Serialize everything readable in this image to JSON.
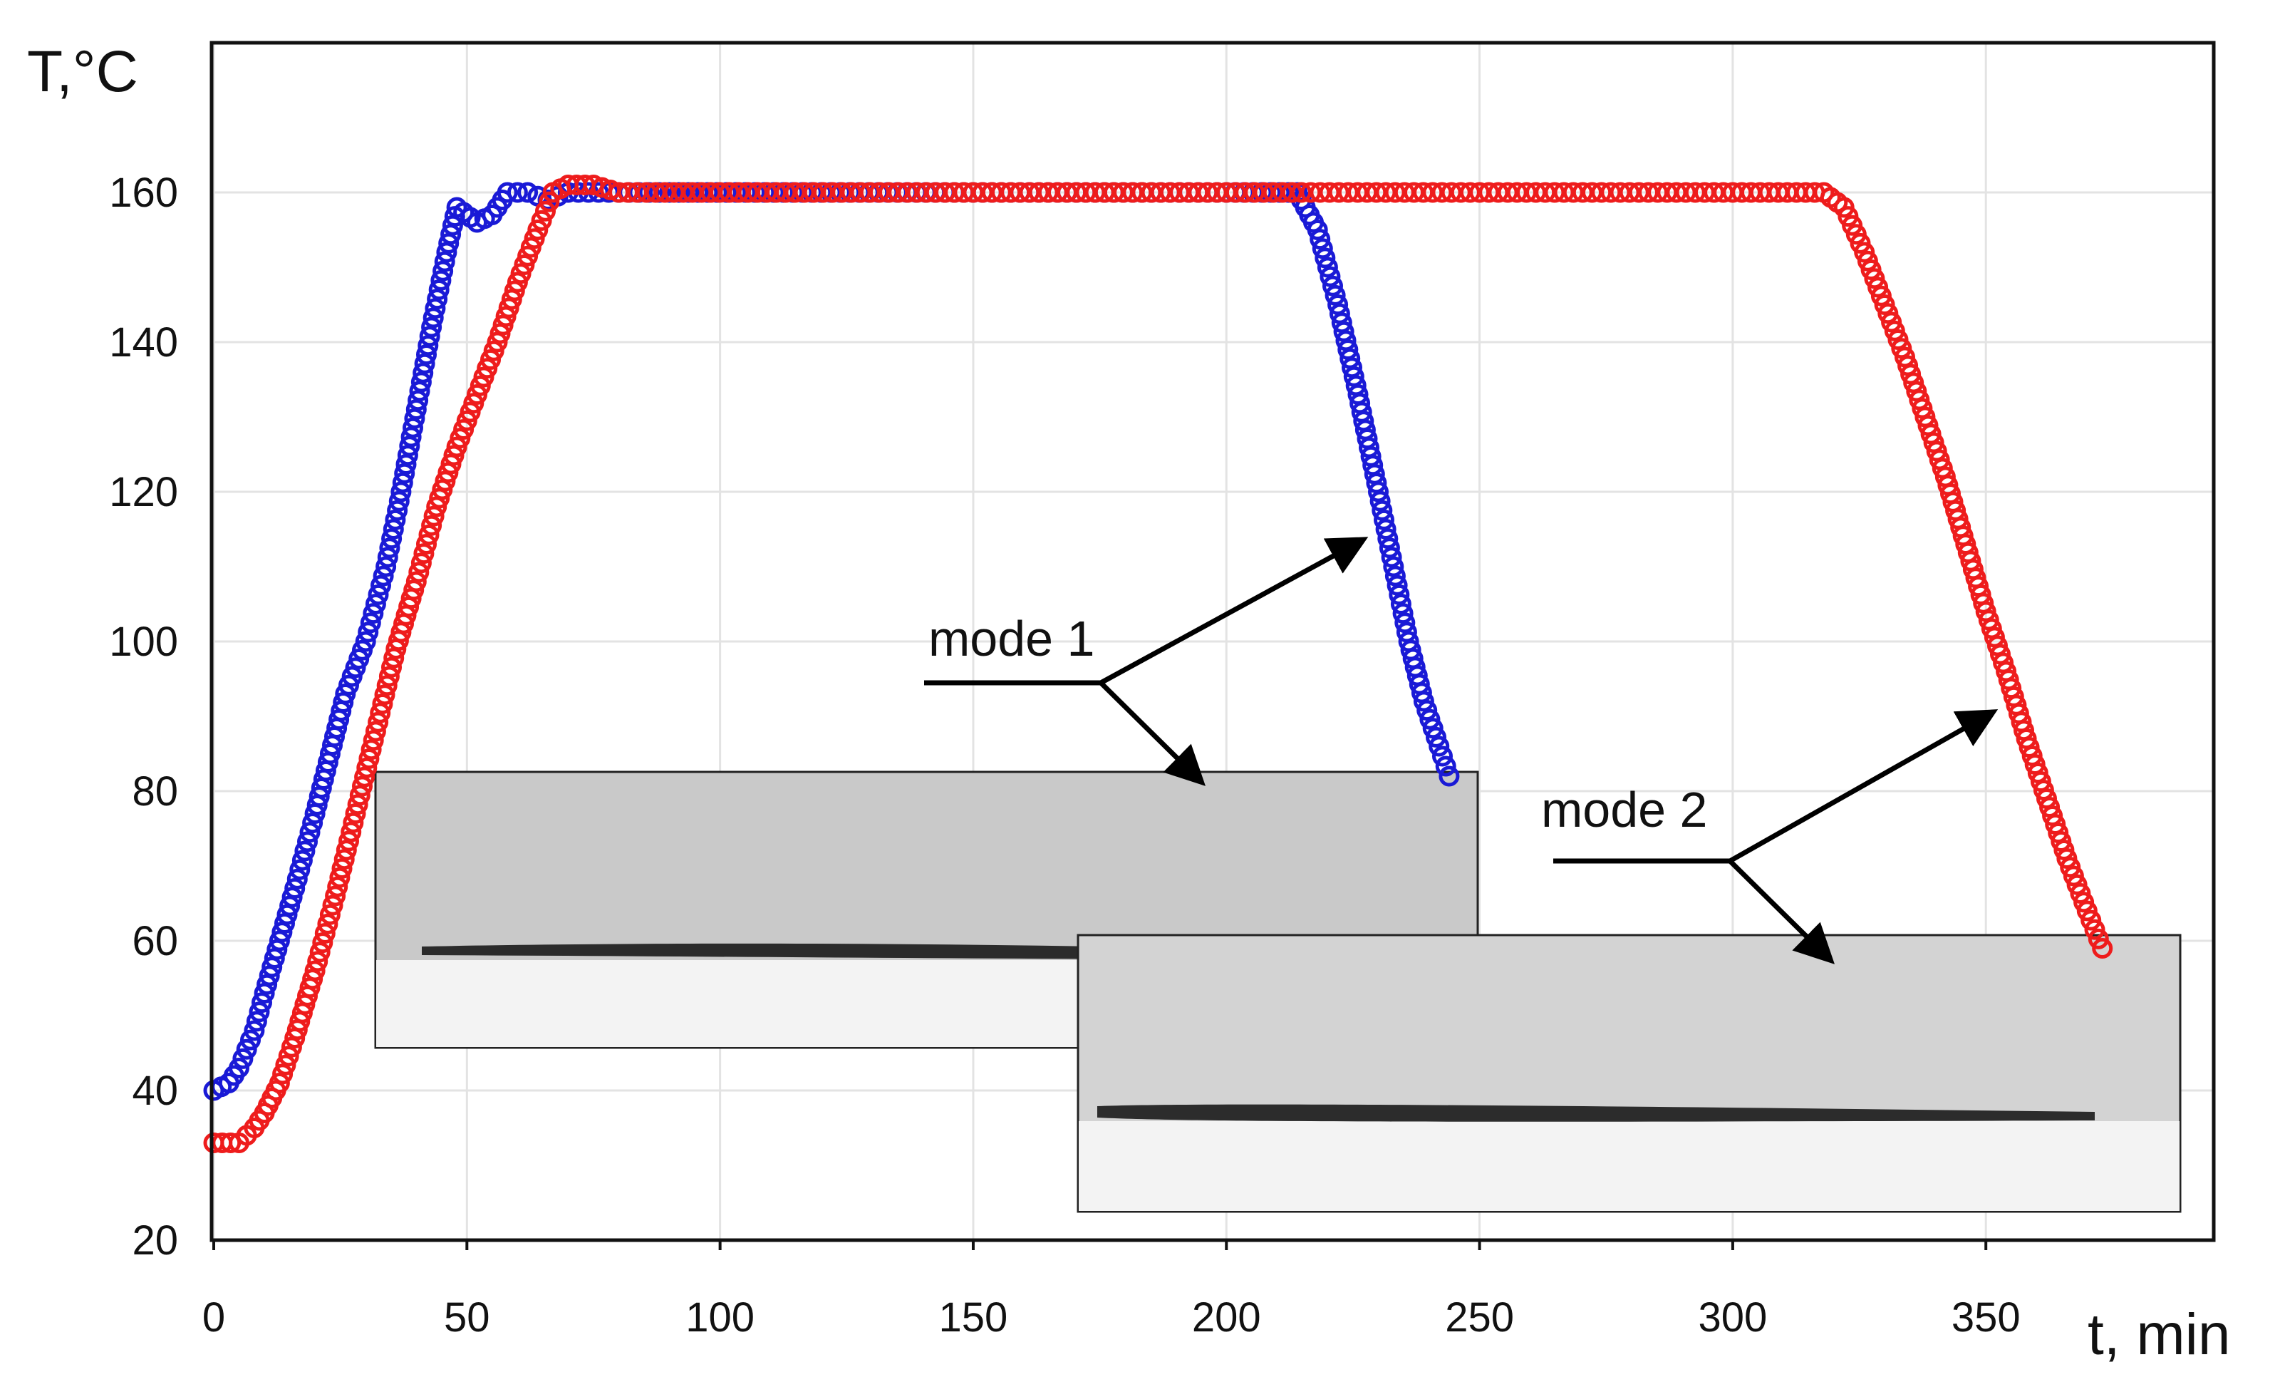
{
  "chart_data": {
    "type": "scatter",
    "title": "",
    "xlabel": "t, min",
    "ylabel": "T,°C",
    "xlim": [
      0,
      395
    ],
    "ylim": [
      20,
      180
    ],
    "xticks": [
      0,
      50,
      100,
      150,
      200,
      250,
      300,
      350
    ],
    "yticks": [
      20,
      40,
      60,
      80,
      100,
      120,
      140,
      160
    ],
    "grid": true,
    "marker": "open-circle",
    "series": [
      {
        "color": "#1a1ad6",
        "points": [
          [
            0,
            40
          ],
          [
            3,
            41
          ],
          [
            5,
            43
          ],
          [
            8,
            48
          ],
          [
            10,
            53
          ],
          [
            13,
            60
          ],
          [
            16,
            67
          ],
          [
            20,
            77
          ],
          [
            23,
            85
          ],
          [
            26,
            93
          ],
          [
            30,
            100
          ],
          [
            34,
            110
          ],
          [
            37,
            120
          ],
          [
            40,
            131
          ],
          [
            43,
            142
          ],
          [
            46,
            152
          ],
          [
            48,
            158
          ],
          [
            52,
            156
          ],
          [
            55,
            157
          ],
          [
            58,
            160
          ],
          [
            62,
            160
          ],
          [
            66,
            159
          ],
          [
            70,
            160
          ],
          [
            80,
            160
          ],
          [
            90,
            160
          ],
          [
            120,
            160
          ],
          [
            150,
            160
          ],
          [
            200,
            160
          ],
          [
            214,
            160
          ],
          [
            218,
            155
          ],
          [
            222,
            145
          ],
          [
            226,
            133
          ],
          [
            230,
            120
          ],
          [
            233,
            110
          ],
          [
            236,
            100
          ],
          [
            239,
            92
          ],
          [
            242,
            86
          ],
          [
            244,
            82
          ]
        ]
      },
      {
        "color": "#ee1c1c",
        "points": [
          [
            0,
            33
          ],
          [
            5,
            33
          ],
          [
            8,
            35
          ],
          [
            10,
            37
          ],
          [
            13,
            41
          ],
          [
            16,
            47
          ],
          [
            20,
            56
          ],
          [
            24,
            66
          ],
          [
            28,
            77
          ],
          [
            32,
            88
          ],
          [
            36,
            99
          ],
          [
            40,
            108
          ],
          [
            44,
            118
          ],
          [
            48,
            126
          ],
          [
            52,
            133
          ],
          [
            56,
            140
          ],
          [
            60,
            148
          ],
          [
            64,
            155
          ],
          [
            67,
            160
          ],
          [
            70,
            161
          ],
          [
            75,
            161
          ],
          [
            80,
            160
          ],
          [
            100,
            160
          ],
          [
            150,
            160
          ],
          [
            200,
            160
          ],
          [
            250,
            160
          ],
          [
            300,
            160
          ],
          [
            318,
            160
          ],
          [
            322,
            158
          ],
          [
            326,
            152
          ],
          [
            330,
            145
          ],
          [
            334,
            138
          ],
          [
            338,
            130
          ],
          [
            342,
            122
          ],
          [
            346,
            113
          ],
          [
            350,
            104
          ],
          [
            354,
            96
          ],
          [
            358,
            87
          ],
          [
            362,
            79
          ],
          [
            366,
            71
          ],
          [
            370,
            64
          ],
          [
            373,
            59
          ]
        ]
      }
    ],
    "annotations": [
      {
        "text": "mode 1"
      },
      {
        "text": "mode 2"
      }
    ]
  }
}
